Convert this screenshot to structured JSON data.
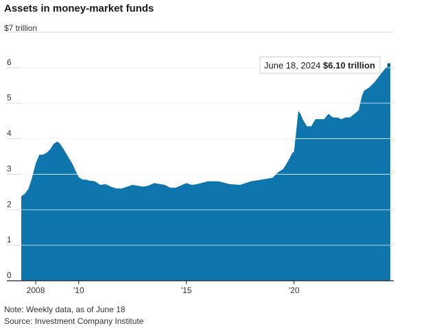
{
  "chart_data": {
    "type": "area",
    "title": "Assets in money-market funds",
    "unit_label": "$7 trillion",
    "y_tick_labels": [
      "0",
      "1",
      "2",
      "3",
      "4",
      "5",
      "6"
    ],
    "y_range": [
      0,
      7
    ],
    "x_range": [
      2007.33,
      2024.47
    ],
    "x_ticks": [
      {
        "value": 2008,
        "label": "2008"
      },
      {
        "value": 2010,
        "label": "'10"
      },
      {
        "value": 2015,
        "label": "'15"
      },
      {
        "value": 2020,
        "label": "'20"
      }
    ],
    "grid": true,
    "color": "#0f75ad",
    "annotation": {
      "date_text": "June 18, 2024",
      "value_text": "$6.10 trillion",
      "x": 2024.47,
      "y": 6.1
    },
    "x": [
      2007.33,
      2007.5,
      2007.67,
      2007.83,
      2008.0,
      2008.17,
      2008.33,
      2008.5,
      2008.67,
      2008.83,
      2009.0,
      2009.1,
      2009.25,
      2009.4,
      2009.55,
      2009.7,
      2009.85,
      2010.0,
      2010.17,
      2010.33,
      2010.5,
      2010.75,
      2011.0,
      2011.25,
      2011.5,
      2011.75,
      2012.0,
      2012.5,
      2013.0,
      2013.25,
      2013.5,
      2014.0,
      2014.25,
      2014.5,
      2015.0,
      2015.25,
      2015.5,
      2016.0,
      2016.5,
      2017.0,
      2017.5,
      2018.0,
      2018.5,
      2019.0,
      2019.25,
      2019.5,
      2019.75,
      2019.9,
      2020.0,
      2020.1,
      2020.2,
      2020.3,
      2020.4,
      2020.6,
      2020.8,
      2021.0,
      2021.2,
      2021.4,
      2021.6,
      2021.8,
      2022.0,
      2022.2,
      2022.4,
      2022.6,
      2022.8,
      2023.0,
      2023.15,
      2023.25,
      2023.5,
      2023.75,
      2024.0,
      2024.2,
      2024.35,
      2024.47
    ],
    "y": [
      2.38,
      2.45,
      2.6,
      2.9,
      3.3,
      3.55,
      3.55,
      3.6,
      3.7,
      3.85,
      3.92,
      3.88,
      3.75,
      3.6,
      3.45,
      3.3,
      3.1,
      2.92,
      2.85,
      2.85,
      2.82,
      2.8,
      2.7,
      2.72,
      2.65,
      2.6,
      2.6,
      2.7,
      2.65,
      2.68,
      2.75,
      2.7,
      2.62,
      2.62,
      2.75,
      2.7,
      2.72,
      2.8,
      2.8,
      2.72,
      2.7,
      2.8,
      2.85,
      2.9,
      3.05,
      3.15,
      3.4,
      3.58,
      3.65,
      4.2,
      4.78,
      4.7,
      4.55,
      4.35,
      4.35,
      4.55,
      4.55,
      4.55,
      4.7,
      4.6,
      4.6,
      4.55,
      4.6,
      4.6,
      4.7,
      4.8,
      5.2,
      5.35,
      5.45,
      5.6,
      5.8,
      5.95,
      6.05,
      6.1
    ]
  },
  "footer": {
    "note": "Note: Weekly data, as of June 18",
    "source": "Source: Investment Company Institute"
  }
}
